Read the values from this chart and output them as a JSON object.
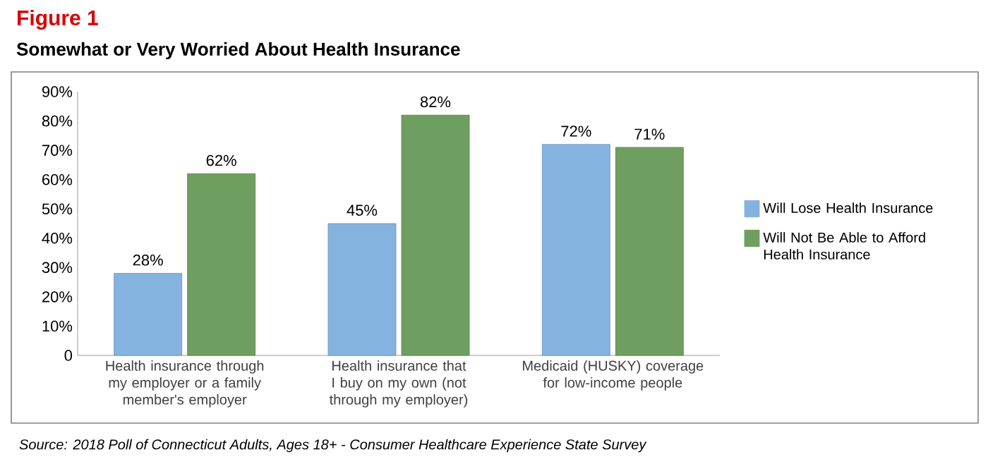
{
  "chart_data": {
    "type": "bar",
    "title": "Figure 1",
    "subtitle": "Somewhat or Very Worried About Health Insurance",
    "categories": [
      "Health insurance through my employer or a family member's employer",
      "Health insurance that I buy on my own (not through my employer)",
      "Medicaid (HUSKY) coverage for low-income people"
    ],
    "series": [
      {
        "name": "Will Lose Health Insurance",
        "color": "#85b3e0",
        "values": [
          28,
          45,
          72
        ],
        "value_labels": [
          "28%",
          "45%",
          "72%"
        ]
      },
      {
        "name": "Will Not Be Able to Afford Health Insurance",
        "color": "#6f9f60",
        "values": [
          62,
          82,
          71
        ],
        "value_labels": [
          "62%",
          "82%",
          "71%"
        ]
      }
    ],
    "ylim": [
      0,
      90
    ],
    "yticks": [
      0,
      {
        "value": 10,
        "label": "10%"
      },
      {
        "value": 20,
        "label": "20%"
      },
      {
        "value": 30,
        "label": "30%"
      },
      {
        "value": 40,
        "label": "40%"
      },
      {
        "value": 50,
        "label": "50%"
      },
      {
        "value": 60,
        "label": "60%"
      },
      {
        "value": 70,
        "label": "70%"
      },
      {
        "value": 80,
        "label": "80%"
      },
      {
        "value": 90,
        "label": "90%"
      }
    ],
    "legend": "right",
    "grid": false,
    "annotations": [
      "Source: 2018 Poll of Connecticut Adults, Ages 18+ - Consumer Healthcare Experience State Survey"
    ]
  }
}
